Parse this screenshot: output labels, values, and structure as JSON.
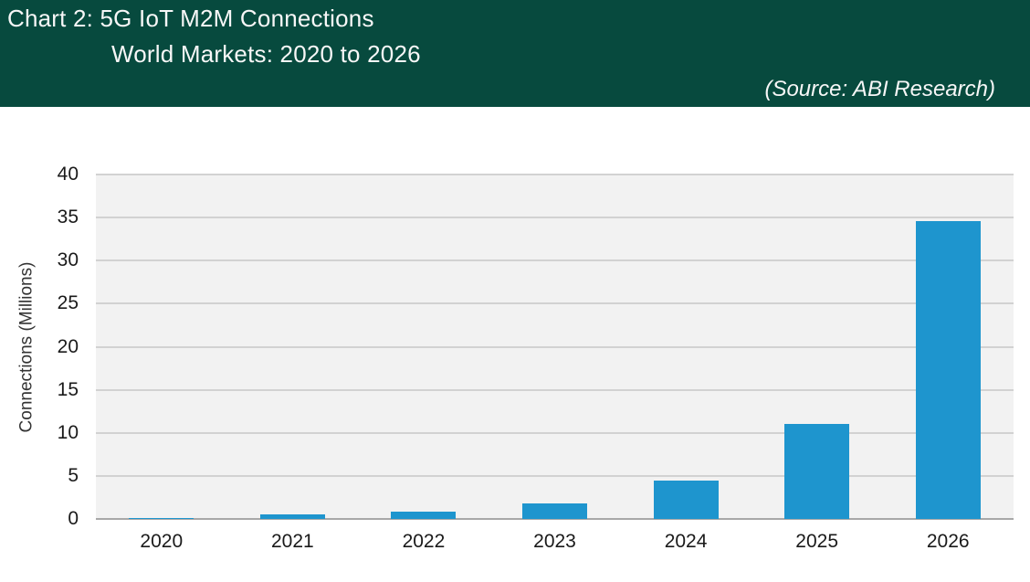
{
  "header": {
    "title_line1": "Chart 2: 5G IoT M2M Connections",
    "title_line2": "World Markets: 2020 to 2026",
    "source": "(Source: ABI Research)",
    "background_color": "#074a3e",
    "text_color": "#f7f7f7"
  },
  "chart_data": {
    "type": "bar",
    "title": "Chart 2: 5G IoT M2M Connections — World Markets: 2020 to 2026",
    "source": "(Source: ABI Research)",
    "series_name": "5G IoT M2M Connections",
    "categories": [
      "2020",
      "2021",
      "2022",
      "2023",
      "2024",
      "2025",
      "2026"
    ],
    "values": [
      0.1,
      0.5,
      0.8,
      1.8,
      4.5,
      11,
      34.6
    ],
    "xlabel": "",
    "ylabel": "Connections (Millions)",
    "ylim": [
      0,
      40
    ],
    "yticks": [
      0,
      5,
      10,
      15,
      20,
      25,
      30,
      35,
      40
    ],
    "grid": "horizontal",
    "legend": "none",
    "bar_color": "#1e95ce",
    "plot_background": "#f2f2f2",
    "gridline_color": "#d2d2d2",
    "baseline_color": "#a8a8a8"
  }
}
